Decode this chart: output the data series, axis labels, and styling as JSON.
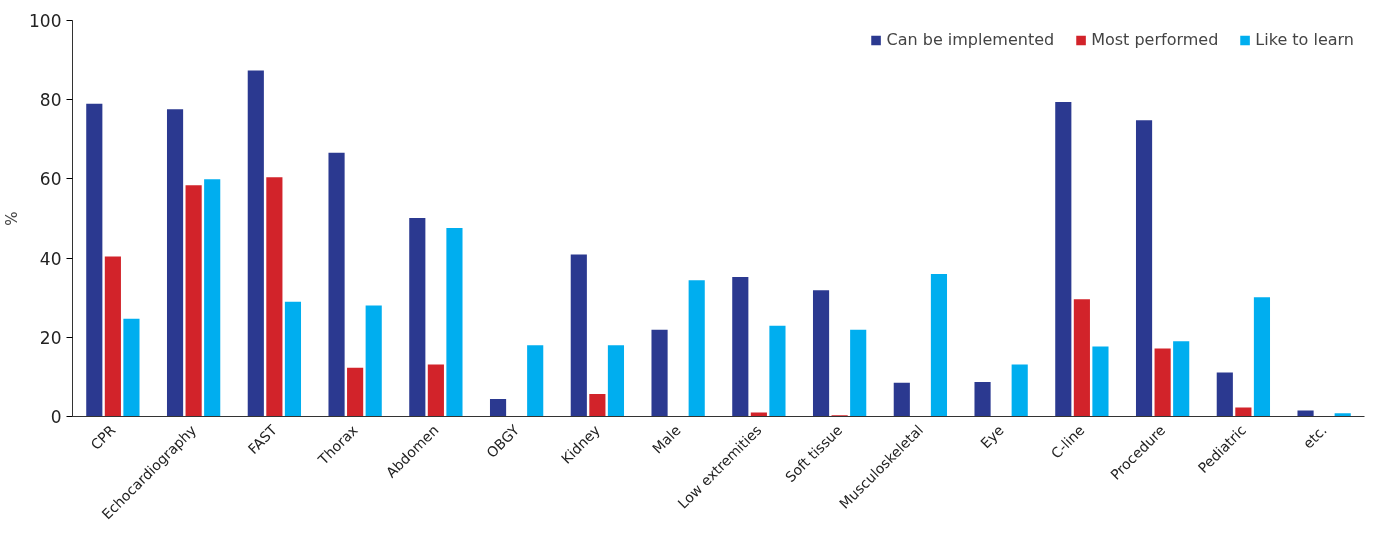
{
  "chart_data": {
    "type": "bar",
    "ylabel": "%",
    "categories": [
      "CPR",
      "Echocardiography",
      "FAST",
      "Thorax",
      "Abdomen",
      "OBGY",
      "Kidney",
      "Male",
      "Low extremities",
      "Soft tissue",
      "Musculoskeletal",
      "Eye",
      "C-line",
      "Procedure",
      "Pediatric",
      "etc."
    ],
    "series": [
      {
        "name": "Can be implemented",
        "color": "#2b3990",
        "values": [
          79,
          77.6,
          87.4,
          66.6,
          50.1,
          4.4,
          40.9,
          21.9,
          35.2,
          31.9,
          8.5,
          8.7,
          79.4,
          74.8,
          11.1,
          1.5
        ]
      },
      {
        "name": "Most performed",
        "color": "#d2232a",
        "values": [
          40.4,
          58.4,
          60.4,
          12.3,
          13.1,
          0,
          5.7,
          0,
          1.0,
          0.3,
          0,
          0,
          29.6,
          17.2,
          2.3,
          0
        ]
      },
      {
        "name": "Like to learn",
        "color": "#00aeef",
        "values": [
          24.7,
          59.9,
          29.0,
          28.0,
          47.6,
          18.0,
          18.0,
          34.4,
          22.9,
          21.9,
          36.0,
          13.1,
          17.7,
          19.0,
          30.1,
          0.8
        ]
      }
    ],
    "ylim": [
      0,
      100
    ],
    "yticks": [
      0,
      20,
      40,
      60,
      80,
      100
    ],
    "grid": false,
    "legend": "top right"
  }
}
